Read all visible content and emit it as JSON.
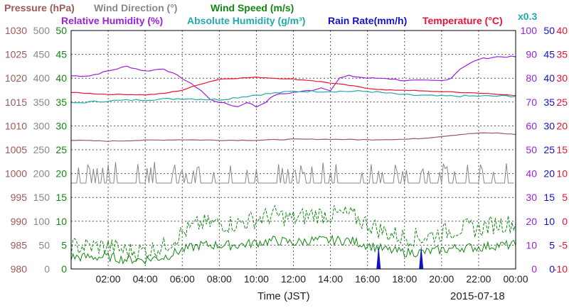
{
  "chart_data": {
    "type": "line",
    "legend": {
      "row1": [
        {
          "text": "Pressure (hPa)",
          "color": "#9c5a5a"
        },
        {
          "text": "Wind Direction (°)",
          "color": "#888888"
        },
        {
          "text": "Wind Speed (m/s)",
          "color": "#118811"
        }
      ],
      "row2": [
        {
          "text": "Relative Humidity (%)",
          "color": "#9922dd"
        },
        {
          "text": "Absolute Humidity (g/m³)",
          "color": "#22aaaa"
        },
        {
          "text": "Rain Rate(mm/h)",
          "color": "#1111cc"
        },
        {
          "text": "Temperature (°C)",
          "color": "#ee1133"
        }
      ],
      "scale_note": "x0.3"
    },
    "axes": {
      "pressure": {
        "ticks": [
          "1030",
          "1025",
          "1020",
          "1015",
          "1010",
          "1005",
          "1000",
          "995",
          "990",
          "985",
          "980"
        ],
        "range": [
          980,
          1030
        ],
        "color": "#9c5a5a"
      },
      "wind_direction": {
        "ticks": [
          "500",
          "450",
          "400",
          "350",
          "300",
          "250",
          "200",
          "150",
          "100",
          "50",
          "0"
        ],
        "range": [
          0,
          500
        ],
        "color": "#888888"
      },
      "wind_speed": {
        "ticks": [
          "50",
          "45",
          "40",
          "35",
          "30",
          "25",
          "20",
          "15",
          "10",
          "5",
          "0"
        ],
        "range": [
          0,
          50
        ],
        "color": "#118811"
      },
      "relative_humidity": {
        "ticks": [
          "100",
          "90",
          "80",
          "70",
          "60",
          "50",
          "40",
          "30",
          "20",
          "10",
          "0"
        ],
        "range": [
          0,
          100
        ],
        "color": "#9922dd"
      },
      "rain_rate": {
        "ticks": [
          "50",
          "45",
          "40",
          "35",
          "30",
          "25",
          "20",
          "15",
          "10",
          "5",
          "0"
        ],
        "range": [
          0,
          50
        ],
        "color": "#1111cc"
      },
      "temperature": {
        "ticks": [
          "40",
          "35",
          "30",
          "25",
          "20",
          "15",
          "10",
          "5",
          "0",
          "-5",
          "-10"
        ],
        "range": [
          -10,
          40
        ],
        "color": "#ee1133"
      }
    },
    "x_ticks": [
      "02:00",
      "04:00",
      "06:00",
      "08:00",
      "10:00",
      "12:00",
      "14:00",
      "16:00",
      "18:00",
      "20:00",
      "22:00",
      "00:00"
    ],
    "xlabel": "Time (JST)",
    "date_label": "2015-07-18",
    "x_range_hours": [
      0,
      24
    ],
    "grid": true,
    "series": [
      {
        "name": "Relative Humidity (%)",
        "color": "#9922dd",
        "axis": "relative_humidity",
        "x": [
          0,
          1,
          1.5,
          2,
          3,
          4,
          5,
          6,
          7,
          7.5,
          8,
          8.5,
          9,
          9.5,
          10,
          10.5,
          11,
          12,
          13,
          13.5,
          14,
          14.5,
          15,
          16,
          17,
          18,
          19,
          20,
          20.5,
          21,
          21.5,
          22,
          23,
          24
        ],
        "y": [
          81,
          81,
          82,
          83,
          85,
          83,
          84,
          80,
          75,
          71,
          70,
          69,
          68,
          70,
          68,
          70,
          73,
          74,
          75,
          76,
          75,
          80,
          81,
          80,
          80,
          79,
          79,
          79,
          80,
          84,
          86,
          88,
          89,
          89
        ]
      },
      {
        "name": "Absolute Humidity (g/m³)",
        "color": "#22aaaa",
        "axis": "relative_humidity",
        "x": [
          0,
          2,
          4,
          6,
          8,
          10,
          12,
          14,
          16,
          18,
          20,
          22,
          24
        ],
        "y": [
          69.5,
          70.5,
          71.0,
          71.5,
          71.0,
          73.0,
          74.5,
          74.5,
          74.5,
          73.0,
          72.5,
          72.5,
          72.5
        ]
      },
      {
        "name": "Temperature (°C)",
        "color": "#ee1133",
        "axis": "temperature",
        "x": [
          0,
          1,
          2,
          3,
          4,
          5,
          6,
          7,
          8,
          9,
          10,
          11,
          12,
          13,
          14,
          15,
          16,
          17,
          18,
          19,
          20,
          21,
          22,
          23,
          24
        ],
        "y": [
          27.0,
          26.8,
          26.6,
          26.6,
          26.5,
          26.8,
          27.5,
          28.8,
          29.8,
          30.0,
          30.2,
          30.0,
          29.8,
          29.5,
          29.0,
          28.5,
          27.9,
          27.5,
          27.5,
          27.3,
          27.2,
          27.0,
          26.9,
          26.6,
          26.4
        ]
      },
      {
        "name": "Pressure (hPa)",
        "color": "#9c5a5a",
        "axis": "pressure",
        "x": [
          0,
          2,
          4,
          6,
          8,
          10,
          12,
          14,
          16,
          18,
          19,
          20,
          21,
          22,
          23,
          24
        ],
        "y": [
          1007.0,
          1006.8,
          1007.0,
          1007.1,
          1007.0,
          1007.0,
          1007.2,
          1007.2,
          1007.1,
          1007.2,
          1007.4,
          1007.8,
          1008.2,
          1008.5,
          1008.5,
          1008.2
        ]
      },
      {
        "name": "Wind Direction (°)",
        "color": "#888888",
        "axis": "wind_direction",
        "x": [
          0,
          24
        ],
        "y": [
          180,
          180
        ]
      },
      {
        "name": "Wind Speed (m/s)",
        "color": "#118811",
        "axis": "wind_speed",
        "x": [
          0,
          1,
          2,
          3,
          4,
          5,
          6,
          7,
          8,
          9,
          10,
          11,
          12,
          13,
          14,
          15,
          16,
          17,
          18,
          19,
          20,
          21,
          22,
          23,
          24
        ],
        "y": [
          2.5,
          2.5,
          2.5,
          2,
          2,
          2.5,
          4,
          5,
          5,
          5,
          5.5,
          6,
          5.5,
          6,
          6,
          6,
          5,
          4,
          3.5,
          3.5,
          4,
          4.5,
          4.5,
          5,
          5
        ]
      },
      {
        "name": "Rain Rate(mm/h)",
        "color": "#1111cc",
        "axis": "rain_rate",
        "x": [
          16.6,
          18.9
        ],
        "y": [
          5,
          5
        ]
      }
    ]
  }
}
